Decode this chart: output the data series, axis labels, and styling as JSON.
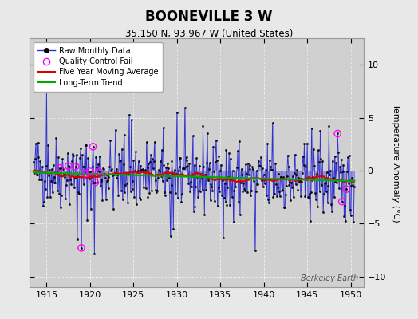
{
  "title": "BOONEVILLE 3 W",
  "subtitle": "35.150 N, 93.967 W (United States)",
  "ylabel": "Temperature Anomaly (°C)",
  "watermark": "Berkeley Earth",
  "xlim": [
    1913.0,
    1951.5
  ],
  "ylim": [
    -11.0,
    12.5
  ],
  "xticks": [
    1915,
    1920,
    1925,
    1930,
    1935,
    1940,
    1945,
    1950
  ],
  "yticks": [
    -10,
    -5,
    0,
    5,
    10
  ],
  "fig_bg_color": "#e8e8e8",
  "plot_bg_color": "#d0d0d0",
  "line_color": "#3333cc",
  "stem_color": "#6666dd",
  "marker_color": "#000000",
  "qc_color": "#ff00ff",
  "ma_color": "#dd0000",
  "trend_color": "#00aa00",
  "seed": 42,
  "n_years": 37,
  "start_year": 1913.5
}
